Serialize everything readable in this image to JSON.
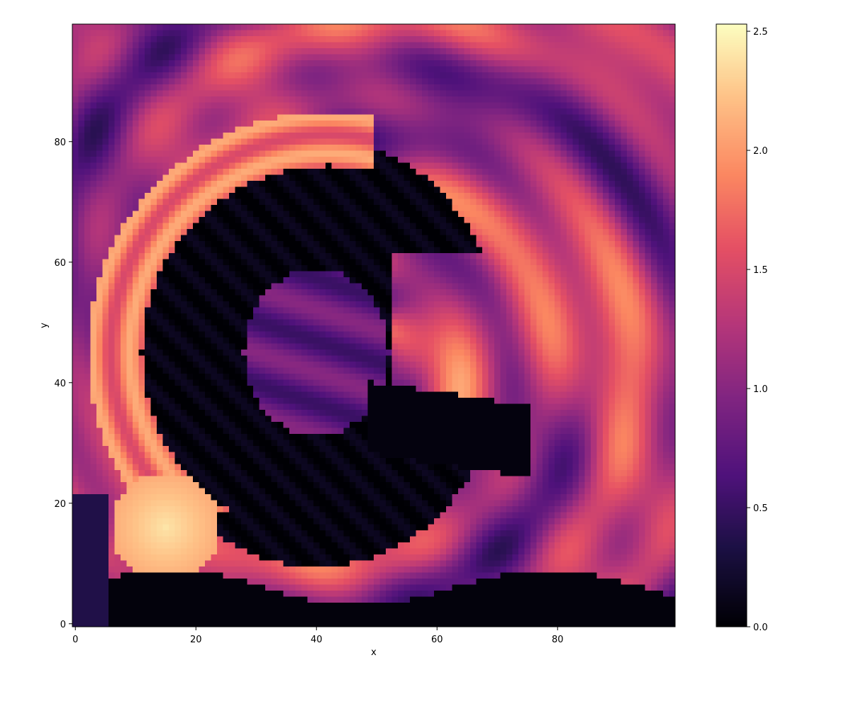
{
  "chart_data": {
    "type": "heatmap",
    "title": "",
    "xlabel": "x",
    "ylabel": "y",
    "xlim": [
      -0.5,
      99.5
    ],
    "ylim": [
      -0.5,
      99.5
    ],
    "xticks": [
      0,
      20,
      40,
      60,
      80
    ],
    "yticks": [
      0,
      20,
      40,
      60,
      80
    ],
    "grid_size": [
      100,
      100
    ],
    "origin": "lower",
    "colormap": "magma",
    "colorbar": {
      "min": 0.0,
      "max": 2.53,
      "ticks": [
        0.0,
        0.5,
        1.0,
        1.5,
        2.0,
        2.5
      ],
      "tick_labels": [
        "0.0",
        "0.5",
        "1.0",
        "1.5",
        "2.0",
        "2.5"
      ]
    },
    "field_summary": {
      "features": [
        {
          "kind": "dark-core",
          "description": "near-zero C-shaped region spanning x≈10–75, y≈10–77",
          "value": 0.0
        },
        {
          "kind": "bright-blob",
          "description": "bright lobe near lower-left",
          "center": [
            15,
            18
          ],
          "value": 2.3
        },
        {
          "kind": "bright-band",
          "description": "bright arc along left edge",
          "value": 2.0
        },
        {
          "kind": "floor",
          "description": "dark strip along bottom, y<8",
          "value": 0.05
        }
      ]
    }
  }
}
